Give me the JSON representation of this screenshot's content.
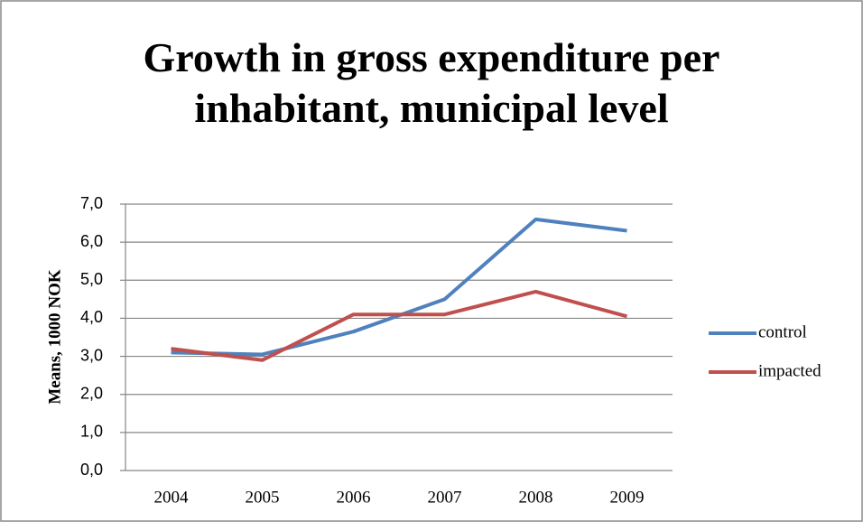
{
  "chart_data": {
    "type": "line",
    "title": "Growth in gross expenditure per inhabitant, municipal level",
    "ylabel": "Means, 1000 NOK",
    "categories": [
      "2004",
      "2005",
      "2006",
      "2007",
      "2008",
      "2009"
    ],
    "series": [
      {
        "name": "control",
        "color": "#4f81bd",
        "values": [
          3.1,
          3.05,
          3.65,
          4.5,
          6.6,
          6.3
        ]
      },
      {
        "name": "impacted",
        "color": "#c0504d",
        "values": [
          3.2,
          2.9,
          4.1,
          4.1,
          4.7,
          4.05
        ]
      }
    ],
    "ylim": [
      0,
      7
    ],
    "yticks": [
      {
        "value": 0,
        "label": "0,0"
      },
      {
        "value": 1,
        "label": "1,0"
      },
      {
        "value": 2,
        "label": "2,0"
      },
      {
        "value": 3,
        "label": "3,0"
      },
      {
        "value": 4,
        "label": "4,0"
      },
      {
        "value": 5,
        "label": "5,0"
      },
      {
        "value": 6,
        "label": "6,0"
      },
      {
        "value": 7,
        "label": "7,0"
      }
    ],
    "grid": true,
    "legend": "right"
  }
}
